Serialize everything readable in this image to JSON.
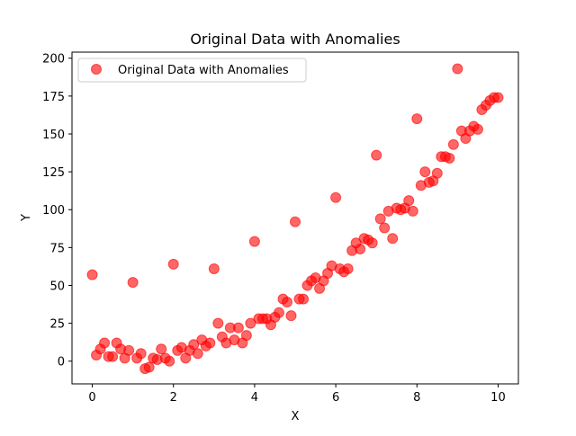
{
  "chart_data": {
    "type": "scatter",
    "title": "Original Data with Anomalies",
    "xlabel": "X",
    "ylabel": "Y",
    "xlim": [
      -0.5,
      10.5
    ],
    "ylim": [
      -15,
      204
    ],
    "xticks": [
      0,
      2,
      4,
      6,
      8,
      10
    ],
    "yticks": [
      0,
      25,
      50,
      75,
      100,
      125,
      150,
      175,
      200
    ],
    "grid": false,
    "legend": {
      "placement": "top-left",
      "entries": [
        "Original Data with Anomalies"
      ]
    },
    "series": [
      {
        "name": "Original Data with Anomalies",
        "color": "#ff0000",
        "alpha": 0.6,
        "x": [
          0.0,
          0.1,
          0.2,
          0.3,
          0.4,
          0.5,
          0.6,
          0.7,
          0.8,
          0.9,
          1.0,
          1.1,
          1.2,
          1.3,
          1.4,
          1.5,
          1.6,
          1.7,
          1.8,
          1.9,
          2.0,
          2.1,
          2.2,
          2.3,
          2.4,
          2.5,
          2.6,
          2.7,
          2.8,
          2.9,
          3.0,
          3.1,
          3.2,
          3.3,
          3.4,
          3.5,
          3.6,
          3.7,
          3.8,
          3.9,
          4.0,
          4.1,
          4.2,
          4.3,
          4.4,
          4.5,
          4.6,
          4.7,
          4.8,
          4.9,
          5.0,
          5.1,
          5.2,
          5.3,
          5.4,
          5.5,
          5.6,
          5.7,
          5.8,
          5.9,
          6.0,
          6.1,
          6.2,
          6.3,
          6.4,
          6.5,
          6.6,
          6.7,
          6.8,
          6.9,
          7.0,
          7.1,
          7.2,
          7.3,
          7.4,
          7.5,
          7.6,
          7.7,
          7.8,
          7.9,
          8.0,
          8.1,
          8.2,
          8.3,
          8.4,
          8.5,
          8.6,
          8.7,
          8.8,
          8.9,
          9.0,
          9.1,
          9.2,
          9.3,
          9.4,
          9.5,
          9.6,
          9.7,
          9.8,
          9.9,
          10.0
        ],
        "y": [
          57,
          4,
          8,
          12,
          3,
          3,
          12,
          8,
          2,
          7,
          52,
          2,
          5,
          -5,
          -4,
          2,
          1,
          8,
          2,
          0,
          64,
          7,
          9,
          2,
          7,
          11,
          5,
          14,
          10,
          12,
          61,
          25,
          16,
          12,
          22,
          14,
          22,
          12,
          17,
          25,
          79,
          28,
          28,
          28,
          24,
          29,
          32,
          41,
          39,
          30,
          92,
          41,
          41,
          50,
          53,
          55,
          48,
          53,
          58,
          63,
          108,
          61,
          59,
          61,
          73,
          78,
          74,
          81,
          80,
          78,
          136,
          94,
          88,
          99,
          81,
          101,
          100,
          101,
          106,
          99,
          160,
          116,
          125,
          118,
          119,
          124,
          135,
          135,
          134,
          143,
          193,
          152,
          147,
          152,
          155,
          153,
          166,
          169,
          172,
          174,
          174
        ]
      }
    ]
  }
}
